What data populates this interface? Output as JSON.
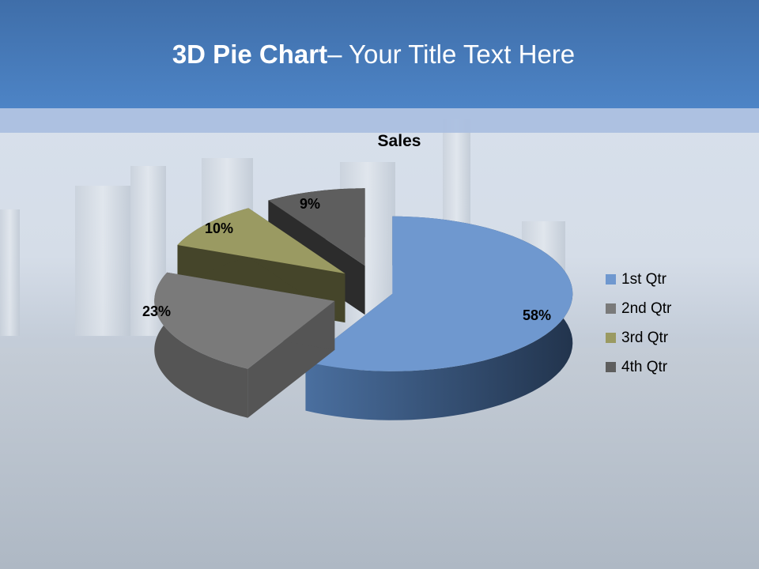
{
  "slide": {
    "title_bold": "3D Pie Chart",
    "title_rest": "– Your Title Text Here"
  },
  "chart_data": {
    "type": "pie",
    "style": "3d-exploded",
    "title": "Sales",
    "categories": [
      "1st Qtr",
      "2nd Qtr",
      "3rd Qtr",
      "4th Qtr"
    ],
    "values": [
      58,
      23,
      10,
      9
    ],
    "data_labels": [
      "58%",
      "23%",
      "10%",
      "9%"
    ],
    "colors": [
      "#6f98cf",
      "#7a7a7a",
      "#9a9a62",
      "#5e5e5e"
    ],
    "legend_position": "right"
  }
}
